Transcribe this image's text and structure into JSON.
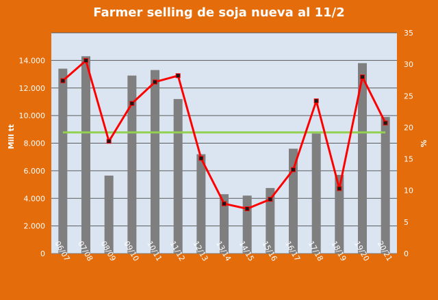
{
  "chart_data": {
    "type": "bar",
    "title": "Farmer selling de soja nueva al 11/2",
    "ylabel": "Mill tt",
    "y2label": "%",
    "ylim": [
      0,
      16000
    ],
    "y2lim": [
      0,
      35
    ],
    "y_ticks": [
      "0",
      "2.000",
      "4.000",
      "6.000",
      "8.000",
      "10.000",
      "12.000",
      "14.000"
    ],
    "y2_ticks": [
      "0",
      "5",
      "10",
      "15",
      "20",
      "25",
      "30",
      "35"
    ],
    "categories": [
      "06/07",
      "07/08",
      "08/09",
      "09/10",
      "10/11",
      "11/12",
      "12/13",
      "13/14",
      "14/15",
      "15/16",
      "16/17",
      "17/18",
      "18/19",
      "19/20",
      "20/21"
    ],
    "series": [
      {
        "type": "bar",
        "axis": "left",
        "color": "#7f7f7f",
        "values": [
          13400,
          14300,
          5650,
          12900,
          13300,
          11200,
          7200,
          4300,
          4200,
          4750,
          7600,
          8700,
          5700,
          13800,
          9900
        ]
      },
      {
        "type": "line",
        "axis": "right",
        "color": "#ff0000",
        "values": [
          27.4,
          30.6,
          17.8,
          23.8,
          27.2,
          28.2,
          15.1,
          7.9,
          7.1,
          8.6,
          13.3,
          24.2,
          10.3,
          28.0,
          20.7
        ]
      },
      {
        "type": "line",
        "axis": "right",
        "color": "#92d050",
        "values": [
          19.2,
          19.2,
          19.2,
          19.2,
          19.2,
          19.2,
          19.2,
          19.2,
          19.2,
          19.2,
          19.2,
          19.2,
          19.2,
          19.2,
          19.2
        ]
      }
    ],
    "grid": true,
    "legend": "none",
    "colors": {
      "background": "#e46c0a",
      "plot_area": "#dbe5f1",
      "gridline": "#595959"
    }
  }
}
